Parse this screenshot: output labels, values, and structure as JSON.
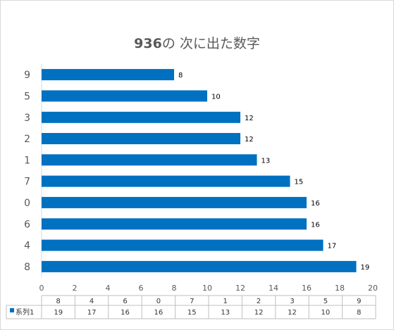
{
  "title_number": "936",
  "title_text": "の 次に出た数字",
  "chart_data": {
    "type": "bar",
    "orientation": "horizontal",
    "title": "936の 次に出た数字",
    "categories": [
      "8",
      "4",
      "6",
      "0",
      "7",
      "1",
      "2",
      "3",
      "5",
      "9"
    ],
    "series": [
      {
        "name": "系列1",
        "values": [
          19,
          17,
          16,
          16,
          15,
          13,
          12,
          12,
          10,
          8
        ]
      }
    ],
    "xlim": [
      0,
      20
    ],
    "x_ticks": [
      0,
      2,
      4,
      6,
      8,
      10,
      12,
      14,
      16,
      18,
      20
    ],
    "data_labels": true,
    "data_table": true,
    "bar_color": "#0070c0",
    "grid": false,
    "legend": "data-table"
  }
}
